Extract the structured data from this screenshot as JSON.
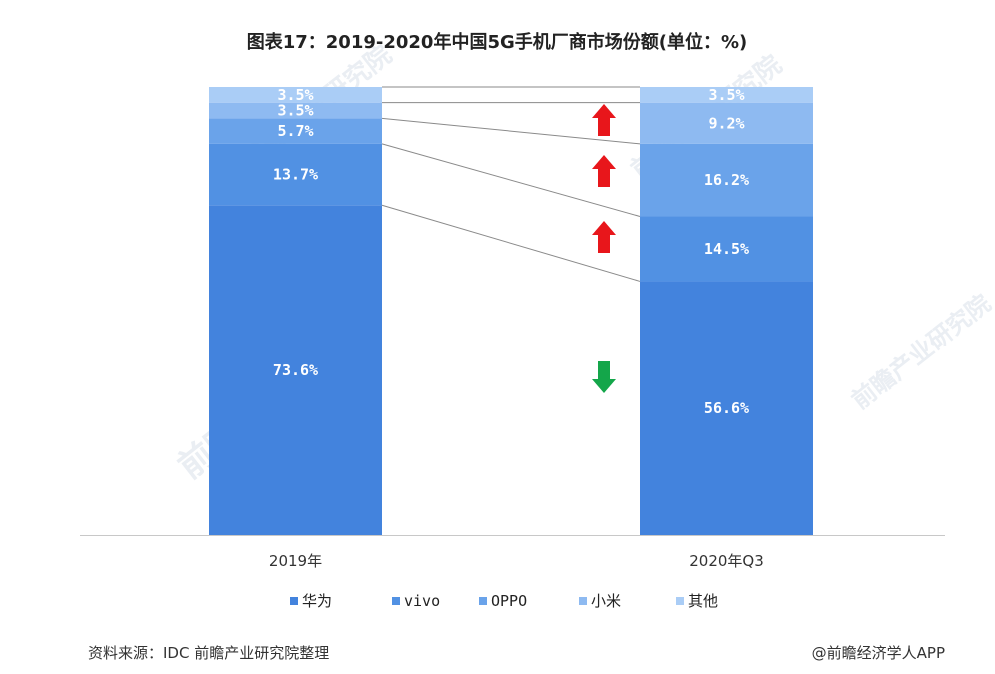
{
  "chart_data": {
    "type": "bar",
    "stacked": true,
    "normalized": true,
    "title": "图表17：2019-2020年中国5G手机厂商市场份额(单位：%)",
    "categories": [
      "2019年",
      "2020年Q3"
    ],
    "series": [
      {
        "name": "华为",
        "values": [
          73.6,
          56.6
        ],
        "labels": [
          "73.6%",
          "56.6%"
        ],
        "color": "#4383dd"
      },
      {
        "name": "vivo",
        "values": [
          13.7,
          14.5
        ],
        "labels": [
          "13.7%",
          "14.5%"
        ],
        "color": "#5191e3"
      },
      {
        "name": "OPPO",
        "values": [
          5.7,
          16.2
        ],
        "labels": [
          "5.7%",
          "16.2%"
        ],
        "color": "#6aa3ea"
      },
      {
        "name": "小米",
        "values": [
          3.5,
          9.2
        ],
        "labels": [
          "3.5%",
          "9.2%"
        ],
        "color": "#8ebaf1"
      },
      {
        "name": "其他",
        "values": [
          3.5,
          3.5
        ],
        "labels": [
          "3.5%",
          "3.5%"
        ],
        "color": "#aacdf6"
      }
    ],
    "trend_arrows": [
      {
        "series": "华为",
        "direction": "down",
        "color": "#14a64a"
      },
      {
        "series": "vivo",
        "direction": "up",
        "color": "#e8161b"
      },
      {
        "series": "OPPO",
        "direction": "up",
        "color": "#e8161b"
      },
      {
        "series": "小米",
        "direction": "up",
        "color": "#e8161b"
      }
    ],
    "ylim": [
      0,
      100
    ],
    "legend_position": "bottom",
    "grid": false
  },
  "footer": {
    "source": "资料来源：IDC 前瞻产业研究院整理",
    "brand": "@前瞻经济学人APP"
  },
  "watermark": {
    "text": "前瞻产业研究院"
  }
}
